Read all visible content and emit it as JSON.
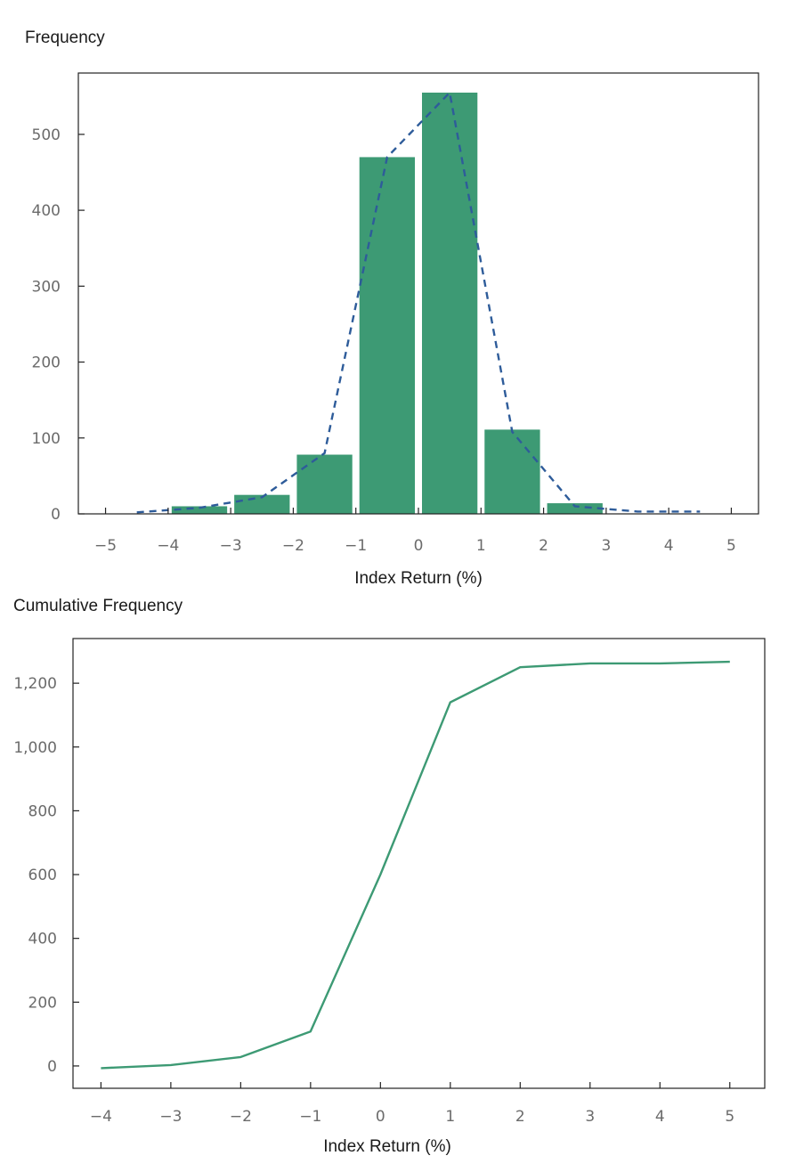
{
  "colors": {
    "bar": "#3d9a74",
    "dashed_line": "#2e5c9a",
    "cumulative_line": "#3d9a74",
    "tick_text": "#6b6b6b",
    "axis": "#222222"
  },
  "chart_data": [
    {
      "type": "bar",
      "ylabel": "Frequency",
      "xlabel": "Index Return (%)",
      "xlim": [
        -5,
        5
      ],
      "ylim": [
        0,
        555
      ],
      "x_ticks": [
        -5,
        -4,
        -3,
        -2,
        -1,
        0,
        1,
        2,
        3,
        4,
        5
      ],
      "x_tick_labels": [
        "−5",
        "−4",
        "−3",
        "−2",
        "−1",
        "0",
        "1",
        "2",
        "3",
        "4",
        "5"
      ],
      "y_ticks": [
        0,
        100,
        200,
        300,
        400,
        500
      ],
      "y_tick_labels": [
        "0",
        "100",
        "200",
        "300",
        "400",
        "500"
      ],
      "bins": [
        {
          "x0": -5,
          "x1": -4,
          "value": 0
        },
        {
          "x0": -4,
          "x1": -3,
          "value": 10
        },
        {
          "x0": -3,
          "x1": -2,
          "value": 25
        },
        {
          "x0": -2,
          "x1": -1,
          "value": 78
        },
        {
          "x0": -1,
          "x1": 0,
          "value": 470
        },
        {
          "x0": 0,
          "x1": 1,
          "value": 555
        },
        {
          "x0": 1,
          "x1": 2,
          "value": 111
        },
        {
          "x0": 2,
          "x1": 3,
          "value": 14
        },
        {
          "x0": 3,
          "x1": 4,
          "value": 0
        },
        {
          "x0": 4,
          "x1": 5,
          "value": 0
        }
      ],
      "frequency_polygon": {
        "style": "dashed",
        "x": [
          -4.5,
          -3.5,
          -2.5,
          -1.5,
          -0.5,
          0.5,
          1.5,
          2.5,
          3.5,
          4.5
        ],
        "y": [
          2,
          8,
          22,
          80,
          470,
          555,
          108,
          10,
          3,
          3
        ]
      },
      "grid": false,
      "legend": "none"
    },
    {
      "type": "line",
      "ylabel": "Cumulative Frequency",
      "xlabel": "Index Return (%)",
      "xlim": [
        -4.4,
        5.5
      ],
      "ylim": [
        -70,
        1340
      ],
      "x_ticks": [
        -4,
        -3,
        -2,
        -1,
        0,
        1,
        2,
        3,
        4,
        5
      ],
      "x_tick_labels": [
        "−4",
        "−3",
        "−2",
        "−1",
        "0",
        "1",
        "2",
        "3",
        "4",
        "5"
      ],
      "y_ticks": [
        0,
        200,
        400,
        600,
        800,
        1000,
        1200
      ],
      "y_tick_labels": [
        "0",
        "200",
        "400",
        "600",
        "800",
        "1,000",
        "1,200"
      ],
      "x": [
        -4,
        -3,
        -2,
        -1,
        0,
        1,
        2,
        3,
        4,
        5
      ],
      "y": [
        -7,
        3,
        28,
        108,
        600,
        1140,
        1250,
        1262,
        1262,
        1267
      ],
      "grid": false,
      "legend": "none"
    }
  ]
}
